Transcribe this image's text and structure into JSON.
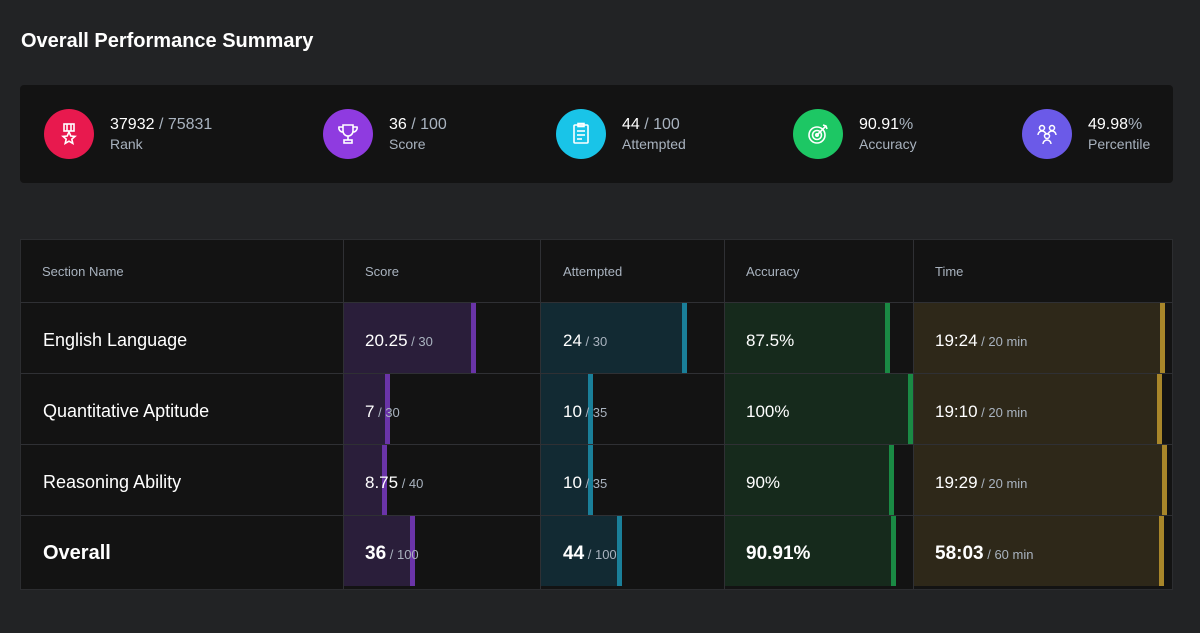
{
  "page_title": "Overall Performance Summary",
  "summary": [
    {
      "value": "37932",
      "total": " / 75831",
      "label": "Rank",
      "icon": "medal-icon",
      "color": "#e8194e"
    },
    {
      "value": "36",
      "total": " / 100",
      "label": "Score",
      "icon": "trophy-icon",
      "color": "#8f3be0"
    },
    {
      "value": "44",
      "total": " / 100",
      "label": "Attempted",
      "icon": "clipboard-icon",
      "color": "#19c4e8"
    },
    {
      "value": "90.91",
      "total": "%",
      "label": "Accuracy",
      "icon": "target-icon",
      "color": "#1dc764"
    },
    {
      "value": "49.98",
      "total": "%",
      "label": "Percentile",
      "icon": "people-icon",
      "color": "#6b5ae8"
    }
  ],
  "table": {
    "headers": [
      "Section Name",
      "Score",
      "Attempted",
      "Accuracy",
      "Time"
    ],
    "rows": [
      {
        "name": "English Language",
        "score": "20.25",
        "score_total": " / 30",
        "score_frac": 0.675,
        "attempted": "24",
        "attempted_total": " / 30",
        "attempted_frac": 0.8,
        "accuracy": "87.5%",
        "accuracy_frac": 0.875,
        "time": "19:24",
        "time_total": " / 20 min",
        "time_frac": 0.97
      },
      {
        "name": "Quantitative Aptitude",
        "score": "7",
        "score_total": " / 30",
        "score_frac": 0.233,
        "attempted": "10",
        "attempted_total": " / 35",
        "attempted_frac": 0.286,
        "accuracy": "100%",
        "accuracy_frac": 1.0,
        "time": "19:10",
        "time_total": " / 20 min",
        "time_frac": 0.958
      },
      {
        "name": "Reasoning Ability",
        "score": "8.75",
        "score_total": " / 40",
        "score_frac": 0.219,
        "attempted": "10",
        "attempted_total": " / 35",
        "attempted_frac": 0.286,
        "accuracy": "90%",
        "accuracy_frac": 0.9,
        "time": "19:29",
        "time_total": " / 20 min",
        "time_frac": 0.975
      },
      {
        "name": "Overall",
        "score": "36",
        "score_total": " / 100",
        "score_frac": 0.36,
        "attempted": "44",
        "attempted_total": " / 100",
        "attempted_frac": 0.44,
        "accuracy": "90.91%",
        "accuracy_frac": 0.909,
        "time": "58:03",
        "time_total": " / 60 min",
        "time_frac": 0.967
      }
    ]
  },
  "colors": {
    "score_bg": "#2a1e3a",
    "score_marker": "#6a34a8",
    "attempted_bg": "#122a33",
    "attempted_marker": "#1a7f99",
    "accuracy_bg": "#162a1c",
    "accuracy_marker": "#1a8a44",
    "time_bg": "#2e2819",
    "time_marker": "#a8862a"
  }
}
